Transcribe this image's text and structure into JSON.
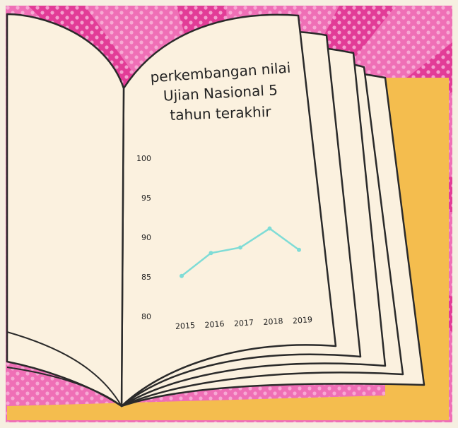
{
  "chart_data": {
    "type": "line",
    "title": [
      "perkembangan nilai",
      "Ujian Nasional 5",
      "tahun terakhir"
    ],
    "categories": [
      "2015",
      "2016",
      "2017",
      "2018",
      "2019"
    ],
    "values": [
      85.2,
      88.1,
      88.8,
      91.2,
      88.5
    ],
    "color": "#7fdcd6",
    "ylim": [
      80,
      100
    ],
    "yticks": [
      80,
      85,
      90,
      95,
      100
    ],
    "grid": false
  }
}
